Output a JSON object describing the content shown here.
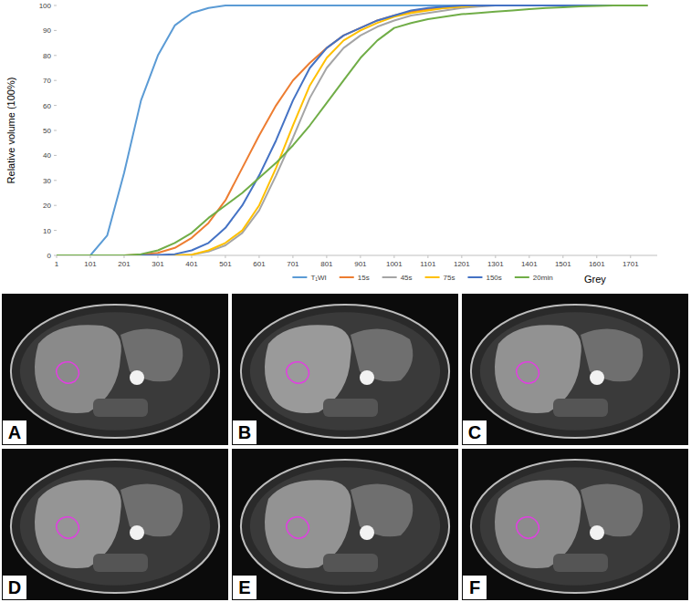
{
  "chart_data": {
    "type": "line",
    "x_label": "Grey",
    "y_label": "Relative volume (100%)",
    "x": [
      1,
      51,
      101,
      151,
      201,
      251,
      301,
      351,
      401,
      451,
      501,
      551,
      601,
      651,
      701,
      751,
      801,
      851,
      901,
      951,
      1001,
      1051,
      1101,
      1151,
      1201,
      1251,
      1301,
      1351,
      1401,
      1451,
      1501,
      1551,
      1601,
      1651,
      1701,
      1751
    ],
    "xlim": [
      1,
      1780
    ],
    "xticks": [
      1,
      101,
      201,
      301,
      401,
      501,
      601,
      701,
      801,
      901,
      1001,
      1101,
      1201,
      1301,
      1401,
      1501,
      1601,
      1701
    ],
    "ylim": [
      0,
      100
    ],
    "yticks": [
      0,
      10,
      20,
      30,
      40,
      50,
      60,
      70,
      80,
      90,
      100
    ],
    "grid": false,
    "legend": "bottom",
    "series": [
      {
        "name": "T₁WI",
        "color": "#5b9bd5",
        "values": [
          0,
          0,
          0,
          8,
          33,
          62,
          80,
          92,
          97,
          99,
          100,
          100,
          100,
          100,
          100,
          100,
          100,
          100,
          100,
          100,
          100,
          100,
          100,
          100,
          100,
          100,
          100,
          100,
          100,
          100,
          100,
          100,
          100,
          100,
          100,
          100
        ]
      },
      {
        "name": "15s",
        "color": "#ed7d31",
        "values": [
          0,
          0,
          0,
          0,
          0,
          0.3,
          1,
          3,
          7,
          13,
          22,
          35,
          48,
          60,
          70,
          77,
          83,
          88,
          91,
          94,
          96,
          97.5,
          98.5,
          99,
          99.5,
          100,
          100,
          100,
          100,
          100,
          100,
          100,
          100,
          100,
          100,
          100
        ]
      },
      {
        "name": "45s",
        "color": "#a5a5a5",
        "values": [
          0,
          0,
          0,
          0,
          0,
          0,
          0,
          0,
          0.3,
          1.5,
          4,
          9,
          18,
          32,
          47,
          63,
          75,
          83,
          88,
          91.5,
          94,
          96,
          97,
          98,
          99,
          99.5,
          100,
          100,
          100,
          100,
          100,
          100,
          100,
          100,
          100,
          100
        ]
      },
      {
        "name": "75s",
        "color": "#ffc000",
        "values": [
          0,
          0,
          0,
          0,
          0,
          0,
          0,
          0,
          0.3,
          2,
          5,
          10,
          20,
          35,
          52,
          68,
          79,
          86,
          90,
          93,
          95.5,
          97,
          98,
          99,
          99.5,
          100,
          100,
          100,
          100,
          100,
          100,
          100,
          100,
          100,
          100,
          100
        ]
      },
      {
        "name": "150s",
        "color": "#4472c4",
        "values": [
          0,
          0,
          0,
          0,
          0,
          0,
          0.2,
          0.5,
          2,
          5,
          11,
          20,
          32,
          46,
          62,
          75,
          83,
          88,
          91,
          94,
          96,
          98,
          99,
          99.5,
          100,
          100,
          100,
          100,
          100,
          100,
          100,
          100,
          100,
          100,
          100,
          100
        ]
      },
      {
        "name": "20min",
        "color": "#70ad47",
        "values": [
          0,
          0,
          0,
          0,
          0,
          0.5,
          2,
          5,
          9,
          15,
          20,
          25,
          31,
          37,
          44,
          52,
          61,
          70,
          79,
          86,
          91,
          93,
          94.5,
          95.5,
          96.5,
          97,
          97.5,
          98,
          98.5,
          99,
          99.3,
          99.6,
          99.8,
          100,
          100,
          100
        ]
      }
    ]
  },
  "panels": [
    {
      "label": "A"
    },
    {
      "label": "B"
    },
    {
      "label": "C"
    },
    {
      "label": "D"
    },
    {
      "label": "E"
    },
    {
      "label": "F"
    }
  ]
}
